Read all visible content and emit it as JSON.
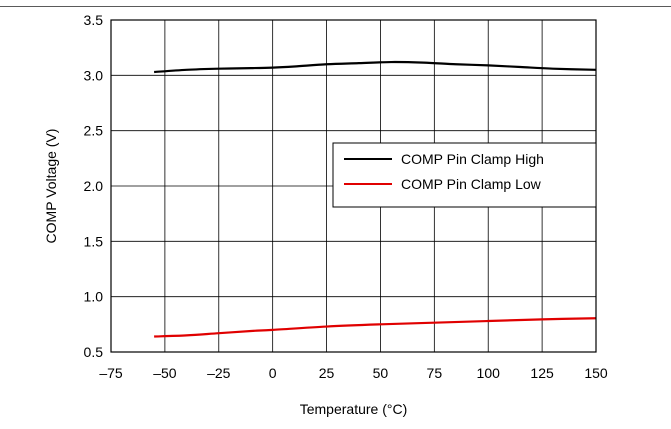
{
  "chart_data": {
    "type": "line",
    "xlabel": "Temperature (°C)",
    "ylabel": "COMP Voltage (V)",
    "xlim": [
      -75,
      150
    ],
    "ylim": [
      0.5,
      3.5
    ],
    "xticks": [
      -75,
      -50,
      -25,
      0,
      25,
      50,
      75,
      100,
      125,
      150
    ],
    "xtick_labels": [
      "–75",
      "–50",
      "–25",
      "0",
      "25",
      "50",
      "75",
      "100",
      "125",
      "150"
    ],
    "yticks": [
      0.5,
      1.0,
      1.5,
      2.0,
      2.5,
      3.0,
      3.5
    ],
    "ytick_labels": [
      "0.5",
      "1.0",
      "1.5",
      "2.0",
      "2.5",
      "3.0",
      "3.5"
    ],
    "grid": true,
    "legend_position": "right",
    "series": [
      {
        "name": "COMP Pin Clamp High",
        "color": "#000000",
        "x": [
          -55,
          -40,
          -25,
          -10,
          0,
          10,
          25,
          40,
          55,
          70,
          85,
          100,
          115,
          130,
          150
        ],
        "y": [
          3.03,
          3.05,
          3.06,
          3.065,
          3.07,
          3.08,
          3.1,
          3.11,
          3.12,
          3.115,
          3.1,
          3.09,
          3.075,
          3.06,
          3.05
        ]
      },
      {
        "name": "COMP Pin Clamp Low",
        "color": "#e00000",
        "x": [
          -55,
          -40,
          -25,
          -10,
          0,
          25,
          50,
          75,
          100,
          125,
          150
        ],
        "y": [
          0.64,
          0.65,
          0.67,
          0.69,
          0.7,
          0.73,
          0.75,
          0.765,
          0.78,
          0.795,
          0.805
        ]
      }
    ]
  }
}
